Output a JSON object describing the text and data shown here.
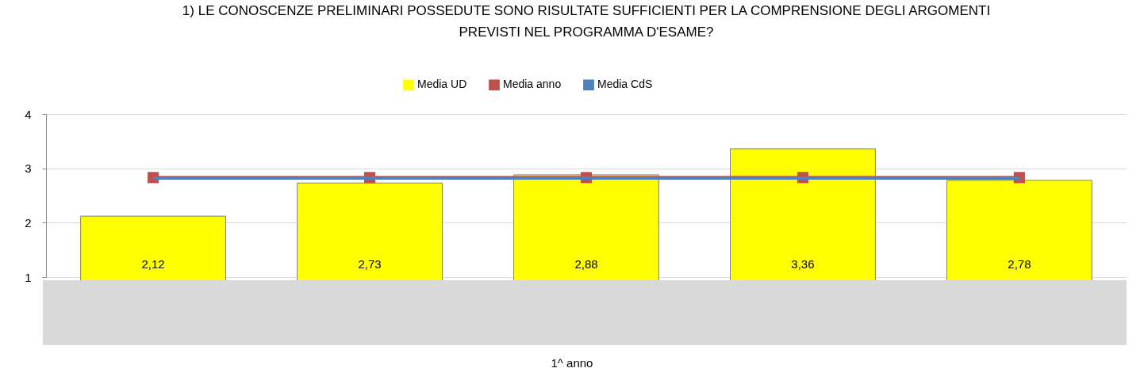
{
  "chart_data": {
    "type": "bar",
    "title": "1) LE CONOSCENZE PRELIMINARI POSSEDUTE SONO RISULTATE SUFFICIENTI PER LA COMPRENSIONE DEGLI ARGOMENTI PREVISTI NEL PROGRAMMA D'ESAME?",
    "annotations": [
      "1^ anno"
    ],
    "categories": [
      null,
      null,
      null,
      null,
      null
    ],
    "series": [
      {
        "name": "Media UD",
        "color": "#ffff00",
        "values": [
          2.12,
          2.73,
          2.88,
          3.36,
          2.78
        ],
        "value_labels": [
          "2,12",
          "2,73",
          "2,88",
          "3,36",
          "2,78"
        ]
      },
      {
        "name": "Media anno",
        "type": "line",
        "color": "#c0504d",
        "marker": "square",
        "values": [
          2.83,
          2.83,
          2.83,
          2.83,
          2.83
        ]
      },
      {
        "name": "Media CdS",
        "type": "line",
        "color": "#4f81bd",
        "values": [
          2.82,
          2.82,
          2.82,
          2.82,
          2.82
        ]
      }
    ],
    "ylim": [
      1,
      4
    ],
    "yticks": [
      {
        "value": 1,
        "label": "1"
      },
      {
        "value": 2,
        "label": "2"
      },
      {
        "value": 3,
        "label": "3"
      },
      {
        "value": 4,
        "label": "4"
      }
    ],
    "grid": "y",
    "legend": "top"
  }
}
